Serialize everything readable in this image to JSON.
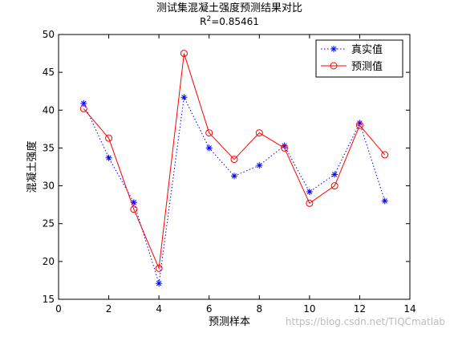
{
  "chart_data": {
    "type": "line",
    "title": "测试集混凝土强度预测结果对比",
    "subtitle_prefix": "R",
    "subtitle_sup": "2",
    "subtitle_value": "=0.85461",
    "xlabel": "预测样本",
    "ylabel": "混凝土强度",
    "xlim": [
      0,
      14
    ],
    "ylim": [
      15,
      50
    ],
    "xticks": [
      0,
      2,
      4,
      6,
      8,
      10,
      12,
      14
    ],
    "yticks": [
      15,
      20,
      25,
      30,
      35,
      40,
      45,
      50
    ],
    "grid": false,
    "legend_position": "top-right",
    "x": [
      1,
      2,
      3,
      4,
      5,
      6,
      7,
      8,
      9,
      10,
      11,
      12,
      13
    ],
    "series": [
      {
        "name": "真实值",
        "color": "#0000ff",
        "line": "dotted",
        "marker": "star",
        "values": [
          40.9,
          33.7,
          27.8,
          17.1,
          41.7,
          35.0,
          31.3,
          32.7,
          35.3,
          29.2,
          31.5,
          38.3,
          28.0
        ]
      },
      {
        "name": "预测值",
        "color": "#ff0000",
        "line": "solid",
        "marker": "circle",
        "values": [
          40.2,
          36.3,
          26.9,
          19.1,
          47.5,
          37.0,
          33.5,
          37.0,
          35.0,
          27.7,
          30.0,
          38.0,
          34.1
        ]
      }
    ]
  },
  "watermark": "https://blog.csdn.net/TIQCmatlab"
}
